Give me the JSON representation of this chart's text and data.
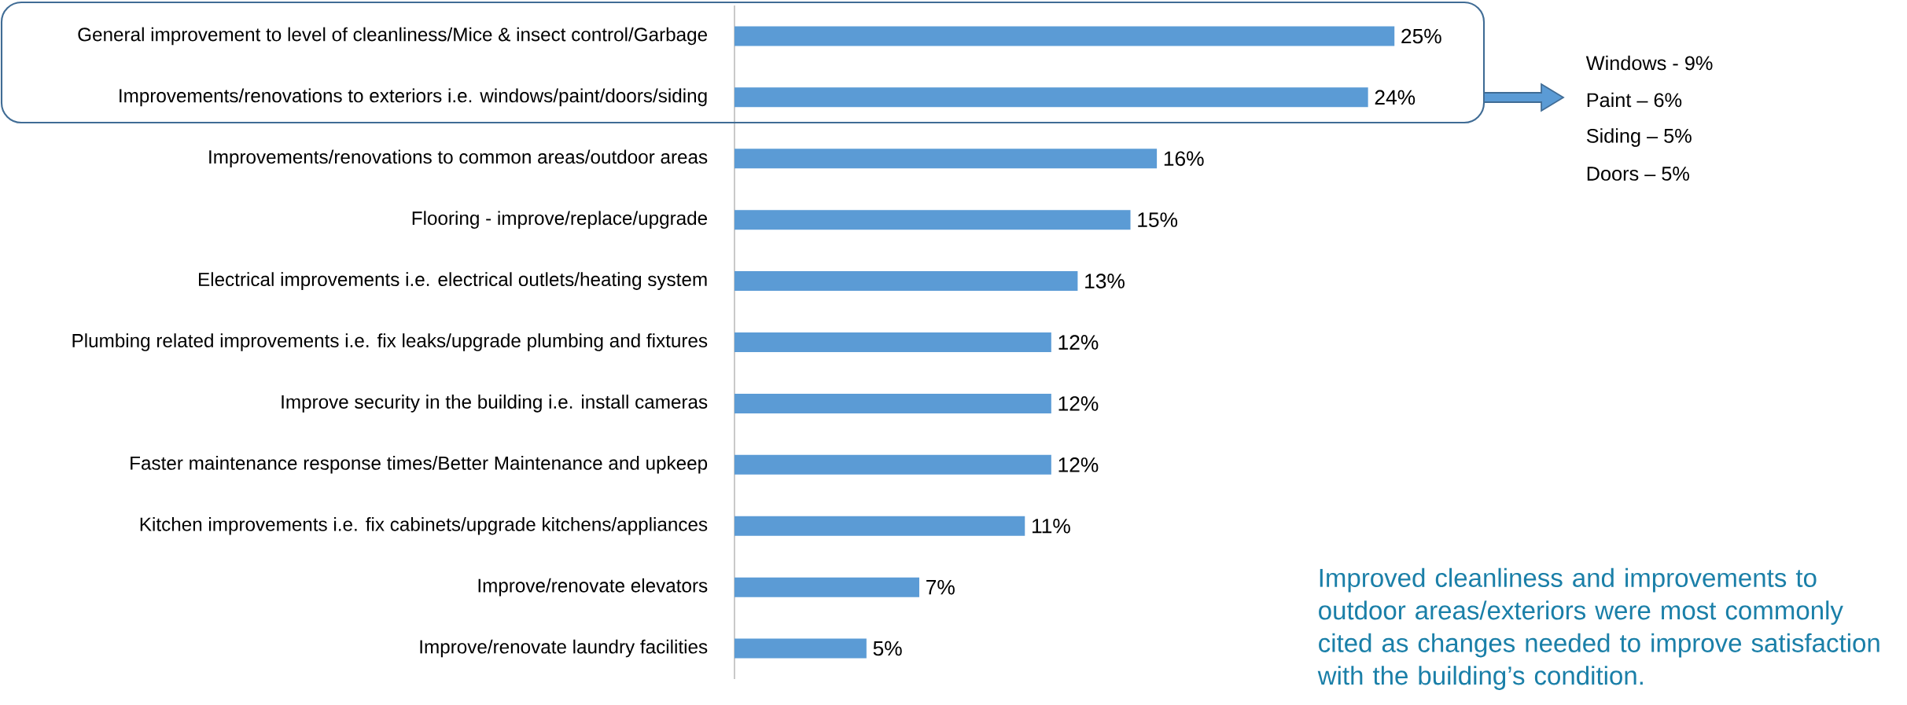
{
  "chart_data": {
    "type": "bar",
    "orientation": "horizontal",
    "categories": [
      "General improvement to level of cleanliness/Mice & insect control/Garbage",
      "Improvements/renovations to exteriors i.e. windows/paint/doors/siding",
      "Improvements/renovations to common areas/outdoor areas",
      "Flooring - improve/replace/upgrade",
      "Electrical improvements i.e. electrical outlets/heating system",
      "Plumbing related improvements i.e. fix leaks/upgrade plumbing and fixtures",
      "Improve security in the building i.e.  install cameras",
      "Faster maintenance response times/Better Maintenance and upkeep",
      "Kitchen improvements i.e. fix cabinets/upgrade kitchens/appliances",
      "Improve/renovate elevators",
      "Improve/renovate laundry facilities"
    ],
    "values": [
      25,
      24,
      16,
      15,
      13,
      12,
      12,
      12,
      11,
      7,
      5
    ],
    "value_labels": [
      "25%",
      "24%",
      "16%",
      "15%",
      "13%",
      "12%",
      "12%",
      "12%",
      "11%",
      "7%",
      "5%"
    ],
    "color": "#5b9bd5",
    "annotations": [
      "Windows - 9%",
      "Paint – 6%",
      "Siding – 5%",
      "Doors – 5%",
      "Improved cleanliness and improvements to outdoor areas/exteriors were most commonly cited as changes needed to improve satisfaction with the building’s condition."
    ]
  }
}
